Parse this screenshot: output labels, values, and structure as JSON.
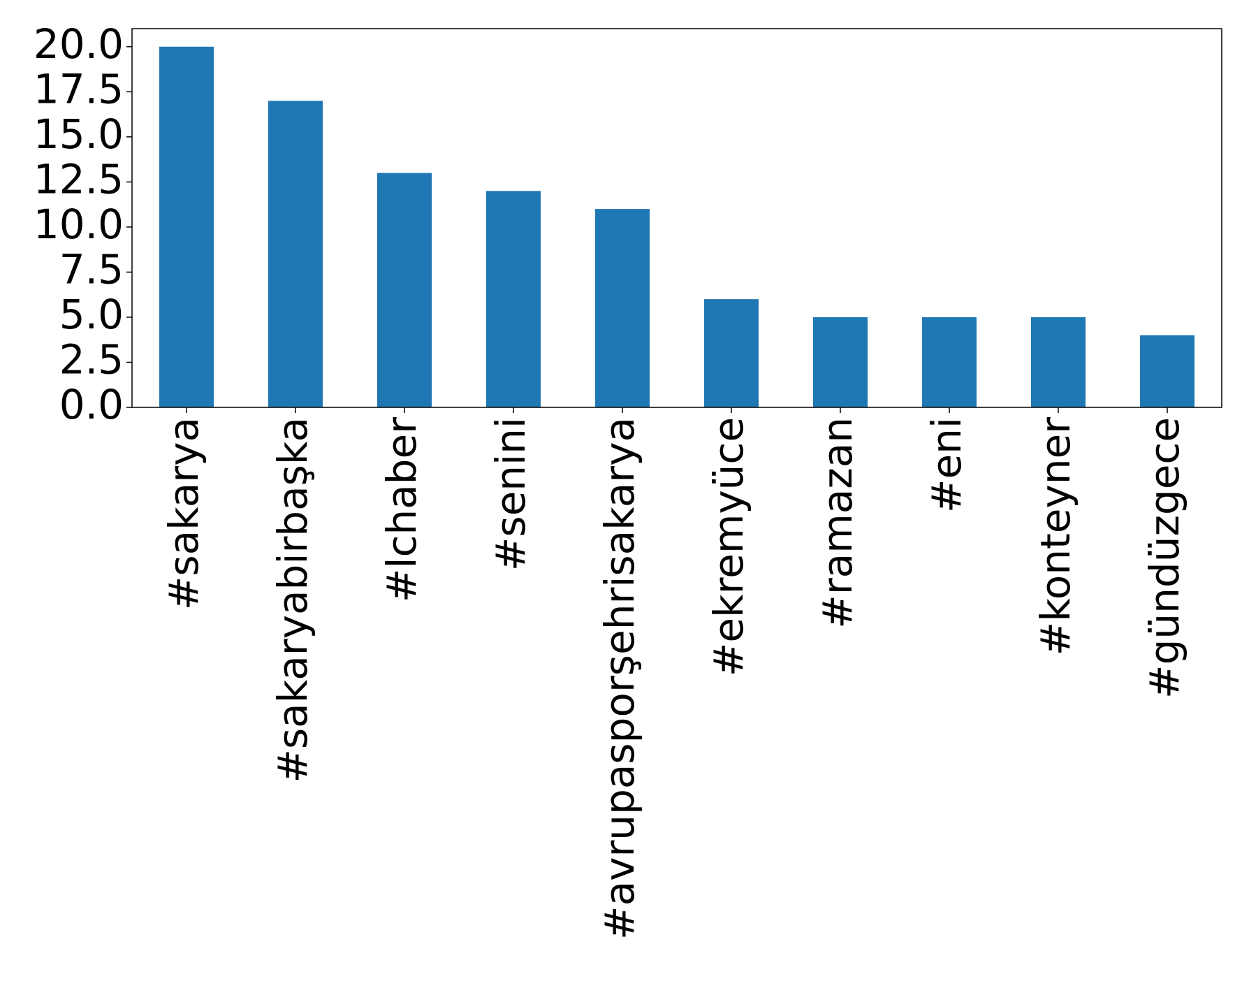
{
  "chart_data": {
    "type": "bar",
    "categories": [
      "#sakarya",
      "#sakaryabirbaşka",
      "#lchaber",
      "#senini",
      "#avrupasporşehrisakarya",
      "#ekremyüce",
      "#ramazan",
      "#eni",
      "#konteyner",
      "#gündüzgece"
    ],
    "values": [
      20,
      17,
      13,
      12,
      11,
      6,
      5,
      5,
      5,
      4
    ],
    "color": "#1f77b4",
    "ylim": [
      0,
      21
    ],
    "yticks": [
      {
        "value": 0,
        "label": "0.0"
      },
      2.5,
      {
        "value": 5,
        "label": "5.0"
      },
      7.5,
      {
        "value": 10,
        "label": "10.0"
      },
      12.5,
      {
        "value": 15,
        "label": "15.0"
      },
      17.5,
      {
        "value": 20,
        "label": "20.0"
      }
    ],
    "grid": false
  }
}
